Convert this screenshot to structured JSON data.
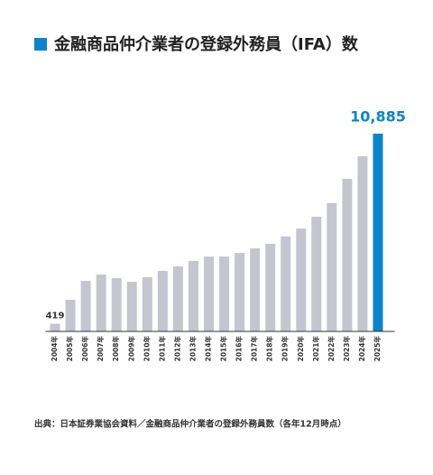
{
  "chart_data": {
    "type": "bar",
    "title": "金融商品仲介業者の登録外務員（IFA）数",
    "source": "出典：日本証券業協会資料／金融商品仲介業者の登録外務員数（各年12月時点）",
    "categories": [
      "2004年",
      "2005年",
      "2006年",
      "2007年",
      "2008年",
      "2009年",
      "2010年",
      "2011年",
      "2012年",
      "2013年",
      "2014年",
      "2015年",
      "2016年",
      "2017年",
      "2018年",
      "2019年",
      "2020年",
      "2021年",
      "2022年",
      "2023年",
      "2024年",
      "2025年"
    ],
    "values": [
      419,
      1740,
      2780,
      3130,
      2930,
      2730,
      2980,
      3330,
      3580,
      3880,
      4120,
      4120,
      4320,
      4570,
      4820,
      5220,
      5660,
      6310,
      7060,
      8400,
      9640,
      10885
    ],
    "value_labels": [
      "419",
      null,
      null,
      null,
      null,
      null,
      null,
      null,
      null,
      null,
      null,
      null,
      null,
      null,
      null,
      null,
      null,
      null,
      null,
      null,
      null,
      "10,885"
    ],
    "color": "#c5c5d0",
    "highlight": {
      "index": 21,
      "color": "#0a84cc"
    },
    "ylim": [
      0,
      11000
    ]
  }
}
